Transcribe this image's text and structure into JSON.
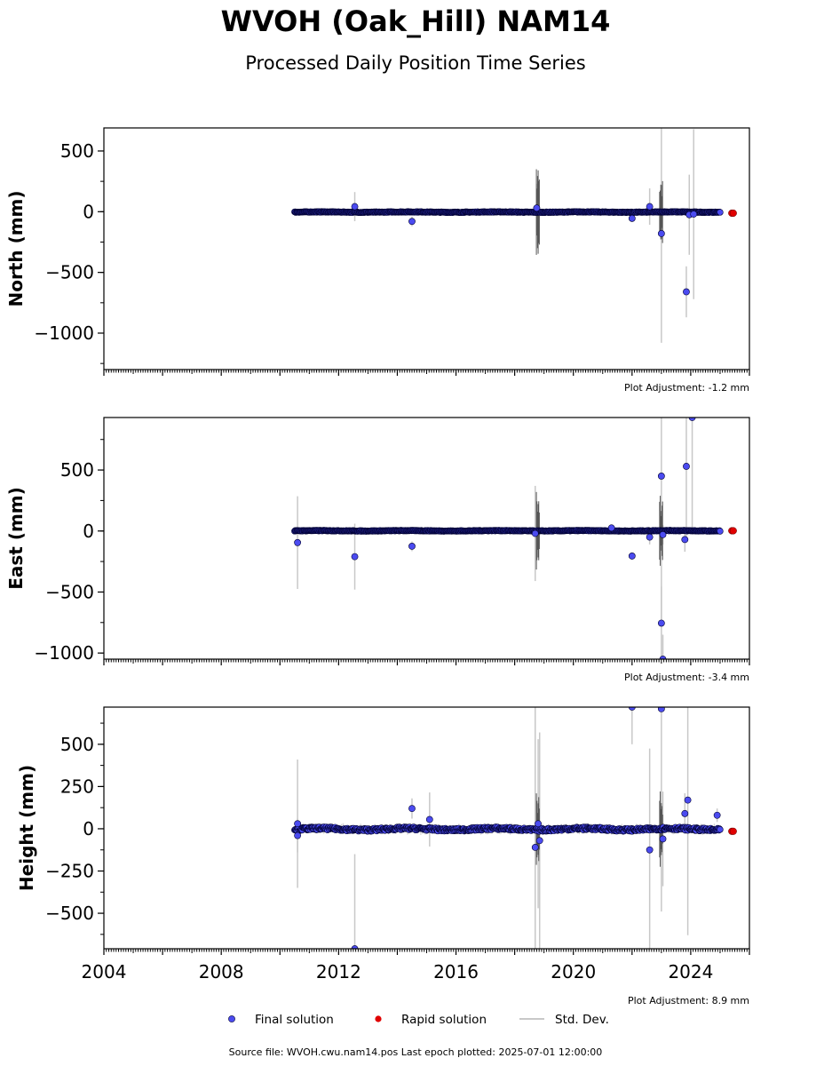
{
  "header": {
    "title": "WVOH (Oak_Hill) NAM14",
    "subtitle": "Processed Daily Position Time Series"
  },
  "legend": {
    "final": "Final solution",
    "rapid": "Rapid solution",
    "std": "Std. Dev."
  },
  "footer": {
    "source": "Source file: WVOH.cwu.nam14.pos  Last epoch plotted: 2025-07-01 12:00:00"
  },
  "colors": {
    "final_fill": "#4b4bf0",
    "final_edge": "#000033",
    "rapid_fill": "#e00000",
    "std_light": "#c8c8c8",
    "std_dark": "#555555"
  },
  "chart_data": [
    {
      "type": "scatter",
      "panel": "north",
      "ylabel": "North (mm)",
      "adjustment": "Plot Adjustment: -1.2 mm",
      "xlim": [
        2004,
        2026
      ],
      "ylim": [
        -1300,
        690
      ],
      "yticks": [
        500,
        0,
        -500,
        -1000
      ],
      "ytick_labels": [
        "500",
        "0",
        "−500",
        "−1000"
      ],
      "dense_band": {
        "x_start": 2010.5,
        "x_end": 2025.0,
        "center": -3,
        "spread": 6
      },
      "outliers": [
        {
          "x": 2012.55,
          "y": 42,
          "err": 120
        },
        {
          "x": 2014.5,
          "y": -80,
          "err": 40
        },
        {
          "x": 2018.75,
          "y": 30,
          "err": 200
        },
        {
          "x": 2022.0,
          "y": -55,
          "err": 30
        },
        {
          "x": 2022.6,
          "y": 42,
          "err": 150
        },
        {
          "x": 2023.0,
          "y": -180,
          "err": 900
        },
        {
          "x": 2023.85,
          "y": -660,
          "err": 210
        },
        {
          "x": 2023.95,
          "y": -25,
          "err": 330
        },
        {
          "x": 2024.1,
          "y": -20,
          "err": 700
        }
      ],
      "rapid": [
        {
          "x": 2025.4,
          "y": -12
        },
        {
          "x": 2025.45,
          "y": -12
        }
      ]
    },
    {
      "type": "scatter",
      "panel": "east",
      "ylabel": "East (mm)",
      "adjustment": "Plot Adjustment: -3.4 mm",
      "xlim": [
        2004,
        2026
      ],
      "ylim": [
        -1050,
        930
      ],
      "yticks": [
        500,
        0,
        -500,
        -1000
      ],
      "ytick_labels": [
        "500",
        "0",
        "−500",
        "−1000"
      ],
      "dense_band": {
        "x_start": 2010.5,
        "x_end": 2025.0,
        "center": 2,
        "spread": 6
      },
      "outliers": [
        {
          "x": 2010.6,
          "y": -95,
          "err": 380
        },
        {
          "x": 2012.55,
          "y": -210,
          "err": 270
        },
        {
          "x": 2014.5,
          "y": -125,
          "err": 40
        },
        {
          "x": 2018.7,
          "y": -20,
          "err": 390
        },
        {
          "x": 2021.3,
          "y": 25,
          "err": 20
        },
        {
          "x": 2022.0,
          "y": -205,
          "err": 30
        },
        {
          "x": 2022.6,
          "y": -50,
          "err": 60
        },
        {
          "x": 2023.0,
          "y": 450,
          "err": 1200
        },
        {
          "x": 2023.0,
          "y": -755,
          "err": 300
        },
        {
          "x": 2023.05,
          "y": -1050,
          "err": 200
        },
        {
          "x": 2023.05,
          "y": -30,
          "err": 80
        },
        {
          "x": 2023.8,
          "y": -70,
          "err": 100
        },
        {
          "x": 2023.85,
          "y": 530,
          "err": 600
        },
        {
          "x": 2024.05,
          "y": 930,
          "err": 900
        }
      ],
      "rapid": [
        {
          "x": 2025.4,
          "y": 2
        },
        {
          "x": 2025.45,
          "y": 2
        }
      ]
    },
    {
      "type": "scatter",
      "panel": "height",
      "ylabel": "Height (mm)",
      "adjustment": "Plot Adjustment: 8.9 mm",
      "xlim": [
        2004,
        2026
      ],
      "ylim": [
        -710,
        720
      ],
      "yticks": [
        500,
        250,
        0,
        -250,
        -500
      ],
      "ytick_labels": [
        "500",
        "250",
        "0",
        "−250",
        "−500"
      ],
      "xticks": [
        2004,
        2008,
        2012,
        2016,
        2020,
        2024
      ],
      "xtick_labels": [
        "2004",
        "2008",
        "2012",
        "2016",
        "2020",
        "2024"
      ],
      "dense_band": {
        "x_start": 2010.5,
        "x_end": 2025.0,
        "center": -2,
        "spread": 18
      },
      "outliers": [
        {
          "x": 2010.6,
          "y": 30,
          "err": 380
        },
        {
          "x": 2010.6,
          "y": -40,
          "err": 100
        },
        {
          "x": 2012.55,
          "y": -710,
          "err": 560
        },
        {
          "x": 2014.5,
          "y": 120,
          "err": 60
        },
        {
          "x": 2015.1,
          "y": 55,
          "err": 160
        },
        {
          "x": 2018.7,
          "y": -110,
          "err": 900
        },
        {
          "x": 2018.85,
          "y": -70,
          "err": 640
        },
        {
          "x": 2018.8,
          "y": 30,
          "err": 500
        },
        {
          "x": 2022.0,
          "y": 720,
          "err": 220
        },
        {
          "x": 2022.6,
          "y": -125,
          "err": 600
        },
        {
          "x": 2023.0,
          "y": 710,
          "err": 1200
        },
        {
          "x": 2023.05,
          "y": -60,
          "err": 280
        },
        {
          "x": 2023.8,
          "y": 90,
          "err": 120
        },
        {
          "x": 2023.9,
          "y": 170,
          "err": 800
        },
        {
          "x": 2024.9,
          "y": 80,
          "err": 40
        }
      ],
      "rapid": [
        {
          "x": 2025.4,
          "y": -15
        },
        {
          "x": 2025.45,
          "y": -15
        }
      ]
    }
  ]
}
